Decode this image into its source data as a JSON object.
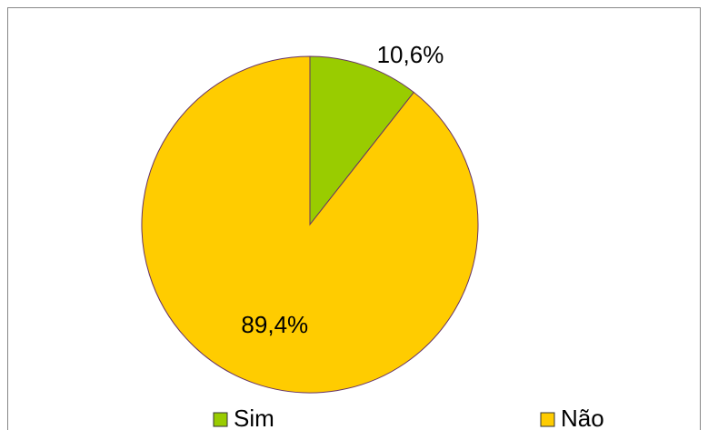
{
  "chart_data": {
    "type": "pie",
    "categories": [
      "Sim",
      "Não"
    ],
    "values": [
      10.6,
      89.4
    ],
    "value_labels": [
      "10,6%",
      "89,4%"
    ],
    "colors": [
      "#99cc00",
      "#ffcc00"
    ],
    "legend": "bottom"
  }
}
